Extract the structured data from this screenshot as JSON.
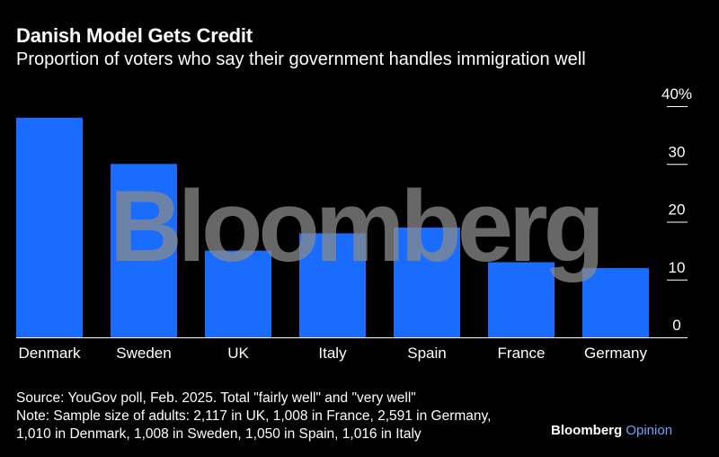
{
  "title": "Danish Model Gets Credit",
  "subtitle": "Proportion of voters who say their government handles immigration well",
  "watermark": "Bloomberg",
  "footer": {
    "source": "Source: YouGov poll, Feb. 2025. Total \"fairly well\" and \"very well\"",
    "note_line1": "Note: Sample size of adults: 2,117 in UK, 1,008 in France, 2,591 in Germany,",
    "note_line2": "1,010 in Denmark, 1,008 in Sweden, 1,050 in Spain, 1,016 in Italy"
  },
  "brand": {
    "name": "Bloomberg",
    "section": "Opinion"
  },
  "colors": {
    "background": "#000000",
    "bar": "#1a6cff",
    "text": "#ffffff",
    "axis": "#ffffff",
    "watermark": "#8a8a8a"
  },
  "chart_data": {
    "type": "bar",
    "categories": [
      "Denmark",
      "Sweden",
      "UK",
      "Italy",
      "Spain",
      "France",
      "Germany"
    ],
    "values": [
      38,
      30,
      15,
      18,
      19,
      13,
      12
    ],
    "ylim": [
      0,
      40
    ],
    "yticks": [
      0,
      10,
      20,
      30,
      40
    ],
    "ytick_labels": [
      "0",
      "10",
      "20",
      "30",
      "40%"
    ],
    "y_axis_side": "right",
    "grid": false
  }
}
